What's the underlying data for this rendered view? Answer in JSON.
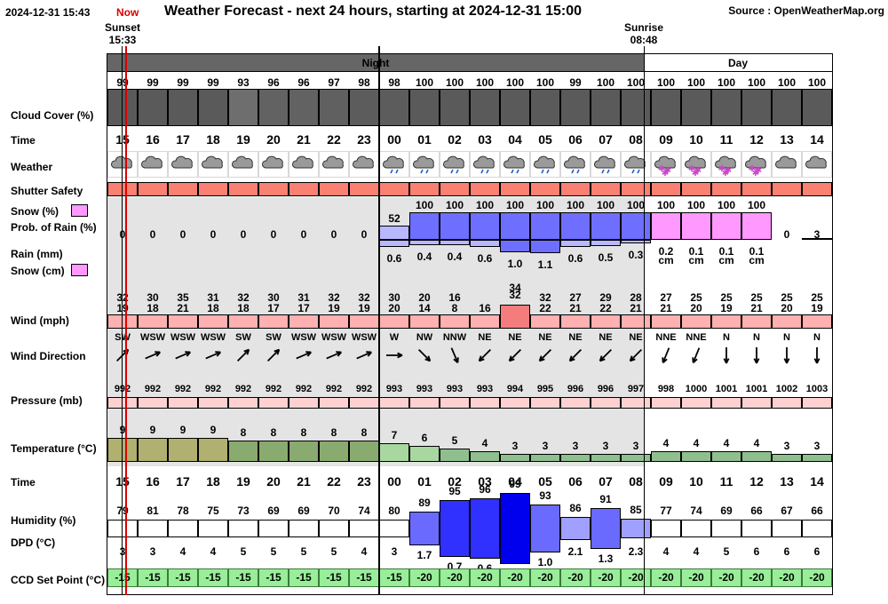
{
  "header": {
    "datetime": "2024-12-31 15:43",
    "now_label": "Now",
    "title": "Weather Forecast - next 24 hours, starting at 2024-12-31 15:00",
    "source": "Source : OpenWeatherMap.org",
    "sunset_label": "Sunset",
    "sunset_time": "15:33",
    "sunrise_label": "Sunrise",
    "sunrise_time": "08:48"
  },
  "bands": {
    "night": "Night",
    "day": "Day"
  },
  "labels": {
    "cloud_cover": "Cloud Cover (%)",
    "time": "Time",
    "weather": "Weather",
    "shutter_safety": "Shutter Safety",
    "snow_pct": "Snow (%)",
    "prob_rain": "Prob. of Rain (%)",
    "rain_mm": "Rain (mm)",
    "snow_cm": "Snow (cm)",
    "wind": "Wind (mph)",
    "wind_direction": "Wind Direction",
    "pressure": "Pressure (mb)",
    "temperature": "Temperature (°C)",
    "time2": "Time",
    "humidity": "Humidity (%)",
    "dpd": "DPD (°C)",
    "ccd": "CCD Set Point (°C)"
  },
  "colors": {
    "night_band": "#666666",
    "cloud_dark": "#5a5a5a",
    "shutter_red": "#fa8072",
    "snow_pink": "#ff99ff",
    "rain_blue": "#6f6fff",
    "wind_pink": "#ffb0b0",
    "wind_red": "#f47c7c",
    "pressure_pink": "#ffd0d0",
    "ccd_green": "#99ee99",
    "now_red": "#dd0000"
  },
  "hours": [
    {
      "time": "15",
      "cloud": "99",
      "shade": "#5a5a5a",
      "weather": "cloud",
      "precip_pct": "0",
      "precip_kind": "none",
      "precip_val": 0,
      "amount": "",
      "amount_unit": "",
      "wind_gust": "32",
      "wind": "19",
      "wind_val": 19,
      "dir": "SW",
      "deg": 225,
      "pressure": "992",
      "temp": "9",
      "temp_val": 9,
      "hum": "79",
      "hum_val": 79,
      "dpd": "3",
      "ccd": "-15"
    },
    {
      "time": "16",
      "cloud": "99",
      "shade": "#5a5a5a",
      "weather": "cloud",
      "precip_pct": "0",
      "precip_kind": "none",
      "precip_val": 0,
      "amount": "",
      "amount_unit": "",
      "wind_gust": "30",
      "wind": "18",
      "wind_val": 18,
      "dir": "WSW",
      "deg": 247,
      "pressure": "992",
      "temp": "9",
      "temp_val": 9,
      "hum": "81",
      "hum_val": 81,
      "dpd": "3",
      "ccd": "-15"
    },
    {
      "time": "17",
      "cloud": "99",
      "shade": "#5a5a5a",
      "weather": "cloud",
      "precip_pct": "0",
      "precip_kind": "none",
      "precip_val": 0,
      "amount": "",
      "amount_unit": "",
      "wind_gust": "35",
      "wind": "21",
      "wind_val": 21,
      "dir": "WSW",
      "deg": 247,
      "pressure": "992",
      "temp": "9",
      "temp_val": 9,
      "hum": "78",
      "hum_val": 78,
      "dpd": "4",
      "ccd": "-15"
    },
    {
      "time": "18",
      "cloud": "99",
      "shade": "#5a5a5a",
      "weather": "cloud",
      "precip_pct": "0",
      "precip_kind": "none",
      "precip_val": 0,
      "amount": "",
      "amount_unit": "",
      "wind_gust": "31",
      "wind": "18",
      "wind_val": 18,
      "dir": "WSW",
      "deg": 247,
      "pressure": "992",
      "temp": "9",
      "temp_val": 9,
      "hum": "75",
      "hum_val": 75,
      "dpd": "4",
      "ccd": "-15"
    },
    {
      "time": "19",
      "cloud": "93",
      "shade": "#6e6e6e",
      "weather": "cloud",
      "precip_pct": "0",
      "precip_kind": "none",
      "precip_val": 0,
      "amount": "",
      "amount_unit": "",
      "wind_gust": "32",
      "wind": "18",
      "wind_val": 18,
      "dir": "SW",
      "deg": 225,
      "pressure": "992",
      "temp": "8",
      "temp_val": 8,
      "hum": "73",
      "hum_val": 73,
      "dpd": "5",
      "ccd": "-15"
    },
    {
      "time": "20",
      "cloud": "96",
      "shade": "#626262",
      "weather": "cloud",
      "precip_pct": "0",
      "precip_kind": "none",
      "precip_val": 0,
      "amount": "",
      "amount_unit": "",
      "wind_gust": "30",
      "wind": "17",
      "wind_val": 17,
      "dir": "SW",
      "deg": 225,
      "pressure": "992",
      "temp": "8",
      "temp_val": 8,
      "hum": "69",
      "hum_val": 69,
      "dpd": "5",
      "ccd": "-15"
    },
    {
      "time": "21",
      "cloud": "96",
      "shade": "#626262",
      "weather": "cloud",
      "precip_pct": "0",
      "precip_kind": "none",
      "precip_val": 0,
      "amount": "",
      "amount_unit": "",
      "wind_gust": "31",
      "wind": "17",
      "wind_val": 17,
      "dir": "WSW",
      "deg": 247,
      "pressure": "992",
      "temp": "8",
      "temp_val": 8,
      "hum": "69",
      "hum_val": 69,
      "dpd": "5",
      "ccd": "-15"
    },
    {
      "time": "22",
      "cloud": "97",
      "shade": "#606060",
      "weather": "cloud",
      "precip_pct": "0",
      "precip_kind": "none",
      "precip_val": 0,
      "amount": "",
      "amount_unit": "",
      "wind_gust": "32",
      "wind": "19",
      "wind_val": 19,
      "dir": "WSW",
      "deg": 247,
      "pressure": "992",
      "temp": "8",
      "temp_val": 8,
      "hum": "70",
      "hum_val": 70,
      "dpd": "5",
      "ccd": "-15"
    },
    {
      "time": "23",
      "cloud": "98",
      "shade": "#5c5c5c",
      "weather": "cloud",
      "precip_pct": "0",
      "precip_kind": "none",
      "precip_val": 0,
      "amount": "",
      "amount_unit": "",
      "wind_gust": "32",
      "wind": "19",
      "wind_val": 19,
      "dir": "WSW",
      "deg": 247,
      "pressure": "992",
      "temp": "8",
      "temp_val": 8,
      "hum": "74",
      "hum_val": 74,
      "dpd": "4",
      "ccd": "-15"
    },
    {
      "time": "00",
      "cloud": "98",
      "shade": "#5c5c5c",
      "weather": "rain",
      "precip_pct": "52",
      "precip_kind": "rain",
      "precip_val": 52,
      "amount": "0.6",
      "amount_unit": "",
      "wind_gust": "30",
      "wind": "20",
      "wind_val": 20,
      "dir": "W",
      "deg": 270,
      "pressure": "993",
      "temp": "7",
      "temp_val": 7,
      "hum": "80",
      "hum_val": 80,
      "dpd": "3",
      "ccd": "-15"
    },
    {
      "time": "01",
      "cloud": "100",
      "shade": "#5a5a5a",
      "weather": "rain",
      "precip_pct": "100",
      "precip_kind": "rain",
      "precip_val": 100,
      "amount": "0.4",
      "amount_unit": "",
      "wind_gust": "20",
      "wind": "14",
      "wind_val": 14,
      "dir": "NW",
      "deg": 315,
      "pressure": "993",
      "temp": "6",
      "temp_val": 6,
      "hum": "89",
      "hum_val": 89,
      "dpd": "1.7",
      "ccd": "-20"
    },
    {
      "time": "02",
      "cloud": "100",
      "shade": "#5a5a5a",
      "weather": "rain",
      "precip_pct": "100",
      "precip_kind": "rain",
      "precip_val": 100,
      "amount": "0.4",
      "amount_unit": "",
      "wind_gust": "16",
      "wind": "8",
      "wind_val": 8,
      "dir": "NNW",
      "deg": 337,
      "pressure": "993",
      "temp": "5",
      "temp_val": 5,
      "hum": "95",
      "hum_val": 95,
      "dpd": "0.7",
      "ccd": "-20"
    },
    {
      "time": "03",
      "cloud": "100",
      "shade": "#5a5a5a",
      "weather": "rain",
      "precip_pct": "100",
      "precip_kind": "rain",
      "precip_val": 100,
      "amount": "0.6",
      "amount_unit": "",
      "wind_gust": "",
      "wind": "16",
      "wind_val": 16,
      "dir": "NE",
      "deg": 45,
      "pressure": "993",
      "temp": "4",
      "temp_val": 4,
      "hum": "96",
      "hum_val": 96,
      "dpd": "0.6",
      "ccd": "-20"
    },
    {
      "time": "04",
      "cloud": "100",
      "shade": "#5a5a5a",
      "weather": "rain",
      "precip_pct": "100",
      "precip_kind": "rain",
      "precip_val": 100,
      "amount": "1.0",
      "amount_unit": "",
      "wind_gust": "34",
      "wind": "32",
      "wind_val": 32,
      "dir": "NE",
      "deg": 45,
      "pressure": "994",
      "temp": "3",
      "temp_val": 3,
      "hum": "99",
      "hum_val": 99,
      "dpd": "0.1",
      "ccd": "-20"
    },
    {
      "time": "05",
      "cloud": "100",
      "shade": "#5a5a5a",
      "weather": "rain",
      "precip_pct": "100",
      "precip_kind": "rain",
      "precip_val": 100,
      "amount": "1.1",
      "amount_unit": "",
      "wind_gust": "32",
      "wind": "22",
      "wind_val": 22,
      "dir": "NE",
      "deg": 45,
      "pressure": "995",
      "temp": "3",
      "temp_val": 3,
      "hum": "93",
      "hum_val": 93,
      "dpd": "1.0",
      "ccd": "-20"
    },
    {
      "time": "06",
      "cloud": "99",
      "shade": "#5a5a5a",
      "weather": "rain",
      "precip_pct": "100",
      "precip_kind": "rain",
      "precip_val": 100,
      "amount": "0.6",
      "amount_unit": "",
      "wind_gust": "27",
      "wind": "21",
      "wind_val": 21,
      "dir": "NE",
      "deg": 45,
      "pressure": "996",
      "temp": "3",
      "temp_val": 3,
      "hum": "86",
      "hum_val": 86,
      "dpd": "2.1",
      "ccd": "-20"
    },
    {
      "time": "07",
      "cloud": "100",
      "shade": "#5a5a5a",
      "weather": "rain",
      "precip_pct": "100",
      "precip_kind": "rain",
      "precip_val": 100,
      "amount": "0.5",
      "amount_unit": "",
      "wind_gust": "29",
      "wind": "22",
      "wind_val": 22,
      "dir": "NE",
      "deg": 45,
      "pressure": "996",
      "temp": "3",
      "temp_val": 3,
      "hum": "91",
      "hum_val": 91,
      "dpd": "1.3",
      "ccd": "-20"
    },
    {
      "time": "08",
      "cloud": "100",
      "shade": "#5a5a5a",
      "weather": "rain",
      "precip_pct": "100",
      "precip_kind": "rain",
      "precip_val": 100,
      "amount": "0.3",
      "amount_unit": "",
      "wind_gust": "28",
      "wind": "21",
      "wind_val": 21,
      "dir": "NE",
      "deg": 45,
      "pressure": "997",
      "temp": "3",
      "temp_val": 3,
      "hum": "85",
      "hum_val": 85,
      "dpd": "2.3",
      "ccd": "-20"
    },
    {
      "time": "09",
      "cloud": "100",
      "shade": "#5a5a5a",
      "weather": "snow",
      "precip_pct": "100",
      "precip_kind": "snow",
      "precip_val": 100,
      "amount": "0.2",
      "amount_unit": "cm",
      "wind_gust": "27",
      "wind": "21",
      "wind_val": 21,
      "dir": "NNE",
      "deg": 22,
      "pressure": "998",
      "temp": "4",
      "temp_val": 4,
      "hum": "77",
      "hum_val": 77,
      "dpd": "4",
      "ccd": "-20"
    },
    {
      "time": "10",
      "cloud": "100",
      "shade": "#5a5a5a",
      "weather": "snow",
      "precip_pct": "100",
      "precip_kind": "snow",
      "precip_val": 100,
      "amount": "0.1",
      "amount_unit": "cm",
      "wind_gust": "25",
      "wind": "20",
      "wind_val": 20,
      "dir": "NNE",
      "deg": 22,
      "pressure": "1000",
      "temp": "4",
      "temp_val": 4,
      "hum": "74",
      "hum_val": 74,
      "dpd": "4",
      "ccd": "-20"
    },
    {
      "time": "11",
      "cloud": "100",
      "shade": "#5a5a5a",
      "weather": "snow",
      "precip_pct": "100",
      "precip_kind": "snow",
      "precip_val": 100,
      "amount": "0.1",
      "amount_unit": "cm",
      "wind_gust": "25",
      "wind": "19",
      "wind_val": 19,
      "dir": "N",
      "deg": 0,
      "pressure": "1001",
      "temp": "4",
      "temp_val": 4,
      "hum": "69",
      "hum_val": 69,
      "dpd": "5",
      "ccd": "-20"
    },
    {
      "time": "12",
      "cloud": "100",
      "shade": "#5a5a5a",
      "weather": "snow",
      "precip_pct": "100",
      "precip_kind": "snow",
      "precip_val": 100,
      "amount": "0.1",
      "amount_unit": "cm",
      "wind_gust": "25",
      "wind": "21",
      "wind_val": 21,
      "dir": "N",
      "deg": 0,
      "pressure": "1001",
      "temp": "4",
      "temp_val": 4,
      "hum": "66",
      "hum_val": 66,
      "dpd": "6",
      "ccd": "-20"
    },
    {
      "time": "13",
      "cloud": "100",
      "shade": "#5a5a5a",
      "weather": "cloud",
      "precip_pct": "0",
      "precip_kind": "none",
      "precip_val": 0,
      "amount": "",
      "amount_unit": "",
      "wind_gust": "25",
      "wind": "20",
      "wind_val": 20,
      "dir": "N",
      "deg": 0,
      "pressure": "1002",
      "temp": "3",
      "temp_val": 3,
      "hum": "67",
      "hum_val": 67,
      "dpd": "6",
      "ccd": "-20"
    },
    {
      "time": "14",
      "cloud": "100",
      "shade": "#5a5a5a",
      "weather": "cloud",
      "precip_pct": "3",
      "precip_kind": "none",
      "precip_val": 3,
      "amount": "",
      "amount_unit": "",
      "wind_gust": "25",
      "wind": "19",
      "wind_val": 19,
      "dir": "N",
      "deg": 0,
      "pressure": "1003",
      "temp": "3",
      "temp_val": 3,
      "hum": "66",
      "hum_val": 66,
      "dpd": "6",
      "ccd": "-20"
    }
  ]
}
